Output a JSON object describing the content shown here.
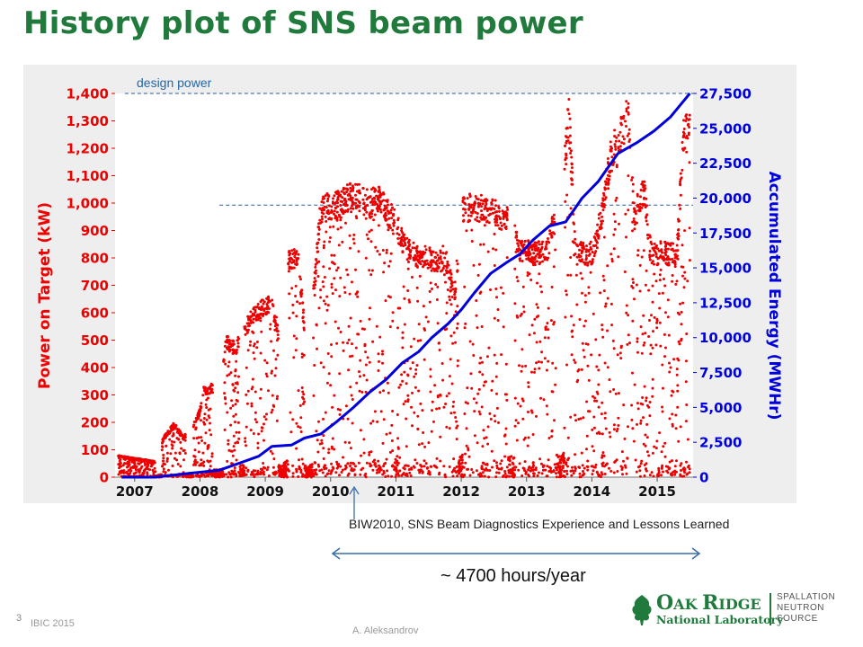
{
  "slide": {
    "title": "History plot of SNS beam power",
    "slide_number": "3",
    "conference": "IBIC 2015",
    "author": "A. Aleksandrov"
  },
  "annotations": {
    "design_power": "design power",
    "reference": "BIW2010, SNS Beam Diagnostics Experience and Lessons Learned",
    "hours": "~ 4700 hours/year"
  },
  "logo": {
    "line1_a": "O",
    "line1_b": "AK ",
    "line1_c": "R",
    "line1_d": "IDGE",
    "line2": "National Laboratory",
    "right_l1": "SPALLATION",
    "right_l2": "NEUTRON",
    "right_l3": "SOURCE"
  },
  "chart_data": {
    "type": "scatter",
    "x_ticks": [
      "2007",
      "2008",
      "2009",
      "2010",
      "2011",
      "2012",
      "2013",
      "2014",
      "2015"
    ],
    "xlim": [
      2006.7,
      2015.55
    ],
    "y_left": {
      "label": "Power on Target (kW)",
      "ticks": [
        "0",
        "100",
        "200",
        "300",
        "400",
        "500",
        "600",
        "700",
        "800",
        "900",
        "1,000",
        "1,100",
        "1,200",
        "1,300",
        "1,400"
      ],
      "lim": [
        0,
        1400
      ],
      "color": "#ee0000"
    },
    "y_right": {
      "label": "Accumulated Energy (MWHr)",
      "ticks": [
        "0",
        "2,500",
        "5,000",
        "7,500",
        "10,000",
        "12,500",
        "15,000",
        "17,500",
        "20,000",
        "22,500",
        "25,000",
        "27,500"
      ],
      "lim": [
        0,
        27500
      ],
      "color": "#0000dd"
    },
    "reference_lines": [
      {
        "axis": "left",
        "value": 1400,
        "from": 2006.85,
        "to": 2015.55
      },
      {
        "axis": "right",
        "value": 19500,
        "from": 2008.3,
        "to": 2015.55
      }
    ],
    "power_envelope": [
      [
        2006.75,
        80
      ],
      [
        2007.0,
        70
      ],
      [
        2007.3,
        60
      ],
      [
        2007.45,
        150
      ],
      [
        2007.6,
        200
      ],
      [
        2007.75,
        150
      ],
      [
        2007.9,
        200
      ],
      [
        2008.0,
        250
      ],
      [
        2008.05,
        330
      ],
      [
        2008.3,
        350
      ],
      [
        2008.4,
        520
      ],
      [
        2008.55,
        490
      ],
      [
        2008.65,
        550
      ],
      [
        2008.8,
        620
      ],
      [
        2008.95,
        650
      ],
      [
        2009.1,
        670
      ],
      [
        2009.25,
        500
      ],
      [
        2009.3,
        820
      ],
      [
        2009.5,
        850
      ],
      [
        2009.65,
        430
      ],
      [
        2009.85,
        1030
      ],
      [
        2010.0,
        1040
      ],
      [
        2010.15,
        1050
      ],
      [
        2010.3,
        1075
      ],
      [
        2010.45,
        1070
      ],
      [
        2010.6,
        1050
      ],
      [
        2010.75,
        1070
      ],
      [
        2010.85,
        1030
      ],
      [
        2011.0,
        970
      ],
      [
        2011.15,
        880
      ],
      [
        2011.3,
        850
      ],
      [
        2011.45,
        850
      ],
      [
        2011.6,
        830
      ],
      [
        2011.75,
        850
      ],
      [
        2011.9,
        700
      ],
      [
        2012.0,
        1020
      ],
      [
        2012.15,
        1040
      ],
      [
        2012.3,
        1030
      ],
      [
        2012.45,
        1020
      ],
      [
        2012.6,
        1000
      ],
      [
        2012.7,
        1000
      ],
      [
        2012.9,
        870
      ],
      [
        2013.1,
        860
      ],
      [
        2013.3,
        860
      ],
      [
        2013.55,
        1100
      ],
      [
        2013.65,
        1400
      ],
      [
        2013.75,
        860
      ],
      [
        2014.0,
        860
      ],
      [
        2014.15,
        1000
      ],
      [
        2014.3,
        1250
      ],
      [
        2014.5,
        1350
      ],
      [
        2014.55,
        1420
      ],
      [
        2014.65,
        1000
      ],
      [
        2014.8,
        1100
      ],
      [
        2014.9,
        860
      ],
      [
        2015.1,
        860
      ],
      [
        2015.3,
        850
      ],
      [
        2015.4,
        1300
      ],
      [
        2015.5,
        1350
      ]
    ],
    "energy_series": [
      [
        2006.8,
        0
      ],
      [
        2007.3,
        0
      ],
      [
        2007.9,
        300
      ],
      [
        2008.3,
        500
      ],
      [
        2008.6,
        1000
      ],
      [
        2008.9,
        1500
      ],
      [
        2009.1,
        2200
      ],
      [
        2009.4,
        2300
      ],
      [
        2009.6,
        2800
      ],
      [
        2009.85,
        3100
      ],
      [
        2010.1,
        4000
      ],
      [
        2010.35,
        5000
      ],
      [
        2010.6,
        6100
      ],
      [
        2010.85,
        7000
      ],
      [
        2011.1,
        8200
      ],
      [
        2011.35,
        9000
      ],
      [
        2011.55,
        10000
      ],
      [
        2011.8,
        11000
      ],
      [
        2012.0,
        12000
      ],
      [
        2012.2,
        13200
      ],
      [
        2012.45,
        14600
      ],
      [
        2012.7,
        15400
      ],
      [
        2012.9,
        16000
      ],
      [
        2013.1,
        17000
      ],
      [
        2013.35,
        18000
      ],
      [
        2013.6,
        18300
      ],
      [
        2013.85,
        20000
      ],
      [
        2014.1,
        21200
      ],
      [
        2014.4,
        23200
      ],
      [
        2014.7,
        24000
      ],
      [
        2014.95,
        24800
      ],
      [
        2015.2,
        25800
      ],
      [
        2015.5,
        27500
      ]
    ],
    "gaps": [
      [
        2007.32,
        2007.42
      ],
      [
        2007.78,
        2007.9
      ],
      [
        2008.2,
        2008.35
      ],
      [
        2008.6,
        2008.68
      ],
      [
        2009.2,
        2009.35
      ],
      [
        2009.6,
        2009.73
      ],
      [
        2010.98,
        2011.02
      ],
      [
        2011.95,
        2012.02
      ],
      [
        2012.72,
        2012.82
      ],
      [
        2013.45,
        2013.58
      ]
    ],
    "grid": false,
    "legend": "none"
  }
}
